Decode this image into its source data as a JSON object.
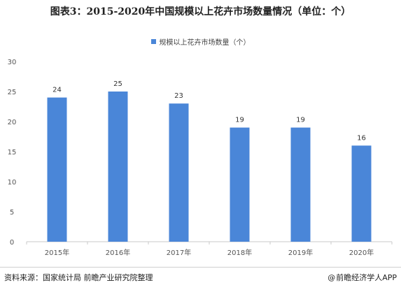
{
  "chart_data": {
    "type": "bar",
    "title": "图表3：2015-2020年中国规模以上花卉市场数量情况（单位：个）",
    "categories": [
      "2015年",
      "2016年",
      "2017年",
      "2018年",
      "2019年",
      "2020年"
    ],
    "series": [
      {
        "name": "规模以上花卉市场数量（个）",
        "values": [
          24,
          25,
          23,
          19,
          19,
          16
        ]
      }
    ],
    "ylim": [
      0,
      30
    ],
    "yticks": [
      "0",
      "5",
      "10",
      "15",
      "20",
      "25",
      "30"
    ],
    "grid": false,
    "legend": "top-center",
    "colors": {
      "bar": "#4a86d8",
      "axis": "#c8c8c8"
    }
  },
  "footer": {
    "source": "资料来源：国家统计局 前瞻产业研究院整理",
    "credit": "前瞻经济学人APP",
    "credit_icon": "at-icon"
  }
}
